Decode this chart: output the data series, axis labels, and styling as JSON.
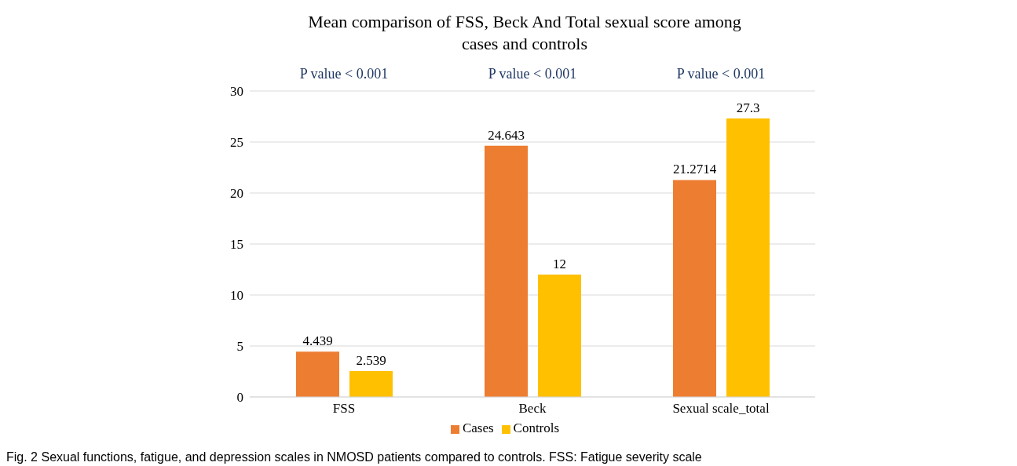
{
  "chart_data": {
    "type": "bar",
    "title": "Mean comparison of FSS, Beck And Total sexual score among cases and controls",
    "categories": [
      "FSS",
      "Beck",
      "Sexual scale_total"
    ],
    "series": [
      {
        "name": "Cases",
        "color": "#ed7d31",
        "values": [
          4.439,
          24.643,
          21.2714
        ]
      },
      {
        "name": "Controls",
        "color": "#ffc000",
        "values": [
          2.539,
          12,
          27.3
        ]
      }
    ],
    "ylim": [
      0,
      30
    ],
    "yticks": [
      0,
      5,
      10,
      15,
      20,
      25,
      30
    ],
    "grid": "y",
    "legend": "bottom",
    "data_labels": true,
    "annotations": [
      "P value < 0.001",
      "P value < 0.001",
      "P value < 0.001",
      "Fig. 2  Sexual functions, fatigue, and depression scales in NMOSD patients compared to controls. FSS: Fatigue severity scale"
    ]
  }
}
